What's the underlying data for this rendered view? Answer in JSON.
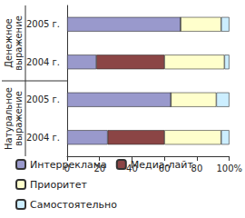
{
  "chart_data": {
    "type": "bar",
    "orientation": "horizontal",
    "stacked": true,
    "categories": [
      "2005 г.",
      "2004 г.",
      "2005 г.",
      "2004 г."
    ],
    "category_groups": [
      "Денежное выражение",
      "Денежное выражение",
      "Натуральное выражение",
      "Натуральное выражение"
    ],
    "series": [
      {
        "name": "Интерреклама",
        "color": "#9999cc",
        "values": [
          70,
          18,
          64,
          25
        ]
      },
      {
        "name": "Медиа-лайт",
        "color": "#8b4545",
        "values": [
          0,
          42,
          0,
          35
        ]
      },
      {
        "name": "Приоритет",
        "color": "#ffffcc",
        "values": [
          25,
          37,
          28,
          35
        ]
      },
      {
        "name": "Самостоятельно",
        "color": "#cceeff",
        "values": [
          5,
          3,
          8,
          5
        ]
      }
    ],
    "xlim": [
      0,
      100
    ],
    "xticks": [
      0,
      20,
      40,
      60,
      80,
      {
        "value": 100,
        "label": "100%"
      }
    ],
    "grid": false,
    "legend": "bottom"
  }
}
